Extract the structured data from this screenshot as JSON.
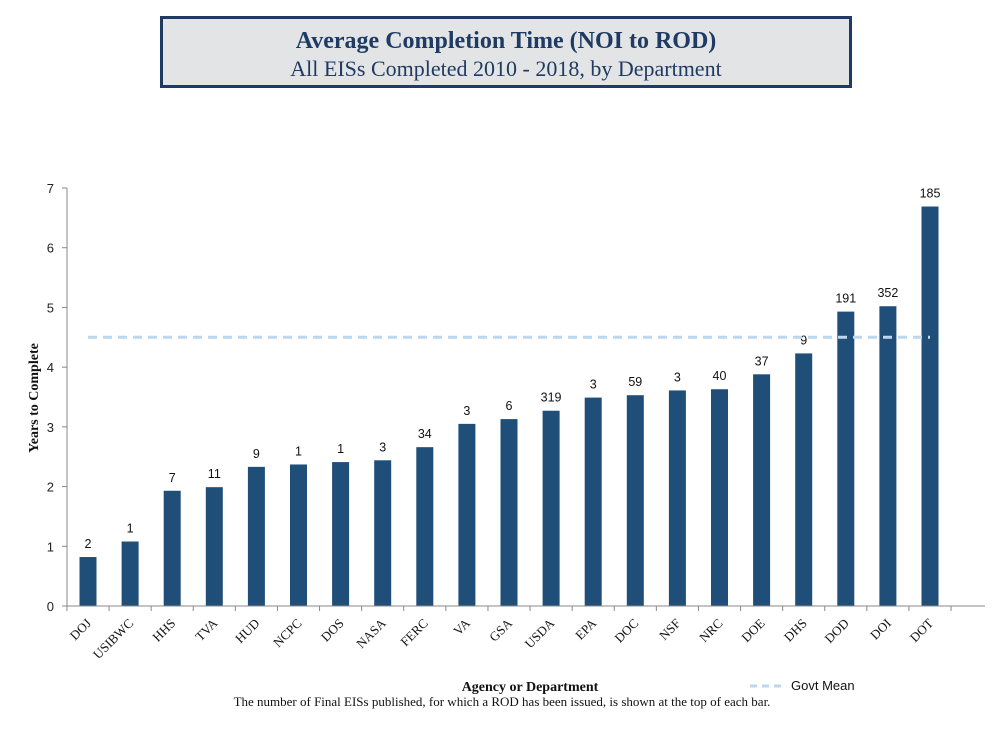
{
  "chart_data": {
    "type": "bar",
    "title": "Average Completion Time (NOI to ROD)",
    "subtitle": "All EISs Completed 2010 - 2018, by Department",
    "xlabel": "Agency or Department",
    "ylabel": "Years to Complete",
    "ylim": [
      0,
      7
    ],
    "yticks": [
      0,
      1,
      2,
      3,
      4,
      5,
      6,
      7
    ],
    "grid": false,
    "categories": [
      "DOJ",
      "USIBWC",
      "HHS",
      "TVA",
      "HUD",
      "NCPC",
      "DOS",
      "NASA",
      "FERC",
      "VA",
      "GSA",
      "USDA",
      "EPA",
      "DOC",
      "NSF",
      "NRC",
      "DOE",
      "DHS",
      "DOD",
      "DOI",
      "DOT"
    ],
    "values": [
      0.82,
      1.08,
      1.93,
      1.99,
      2.33,
      2.37,
      2.41,
      2.44,
      2.66,
      3.05,
      3.13,
      3.27,
      3.49,
      3.53,
      3.61,
      3.63,
      3.88,
      4.23,
      4.93,
      5.02,
      6.69
    ],
    "data_labels": [
      "2",
      "1",
      "7",
      "11",
      "9",
      "1",
      "1",
      "3",
      "34",
      "3",
      "6",
      "319",
      "3",
      "59",
      "3",
      "40",
      "37",
      "9",
      "191",
      "352",
      "185"
    ],
    "bar_color": "#1f4e79",
    "reference_line": {
      "name": "Govt Mean",
      "value": 4.5,
      "color": "#bdd7ee",
      "style": "dashed"
    },
    "legend": {
      "position": "bottom-right",
      "entries": [
        "Govt Mean"
      ]
    }
  },
  "footnote": "The number of Final EISs published, for which a ROD has been issued, is shown at the top of each bar."
}
